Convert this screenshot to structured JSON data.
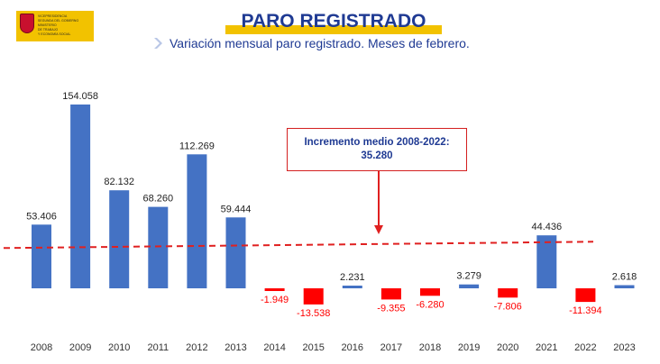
{
  "header": {
    "logo_lines": [
      "Vicepresidencia",
      "Segunda del Gobierno",
      "Ministerio",
      "de Trabajo",
      "y Economía Social"
    ],
    "title": "PARO REGISTRADO",
    "subtitle": "Variación mensual paro registrado. Meses de febrero."
  },
  "annotation": {
    "line1": "Incremento medio 2008-2022:",
    "line2": "35.280"
  },
  "colors": {
    "positive": "#4472c4",
    "negative": "#ff0000",
    "average_line": "#e02020",
    "title": "#1f3a93",
    "accent": "#f2c200"
  },
  "chart_data": {
    "type": "bar",
    "title": "PARO REGISTRADO",
    "subtitle": "Variación mensual paro registrado. Meses de febrero.",
    "xlabel": "",
    "ylabel": "",
    "categories": [
      "2008",
      "2009",
      "2010",
      "2011",
      "2012",
      "2013",
      "2014",
      "2015",
      "2016",
      "2017",
      "2018",
      "2019",
      "2020",
      "2021",
      "2022",
      "2023"
    ],
    "values": [
      53406,
      154058,
      82132,
      68260,
      112269,
      59444,
      -1949,
      -13538,
      2231,
      -9355,
      -6280,
      3279,
      -7806,
      44436,
      -11394,
      2618
    ],
    "value_labels": [
      "53.406",
      "154.058",
      "82.132",
      "68.260",
      "112.269",
      "59.444",
      "-1.949",
      "-13.538",
      "2.231",
      "-9.355",
      "-6.280",
      "3.279",
      "-7.806",
      "44.436",
      "-11.394",
      "2.618"
    ],
    "ylim": [
      -25000,
      165000
    ],
    "grid": false,
    "legend": "none",
    "average_line": {
      "label": "Incremento medio 2008-2022:",
      "value": 35280,
      "value_label": "35.280",
      "style": "dashed"
    }
  }
}
